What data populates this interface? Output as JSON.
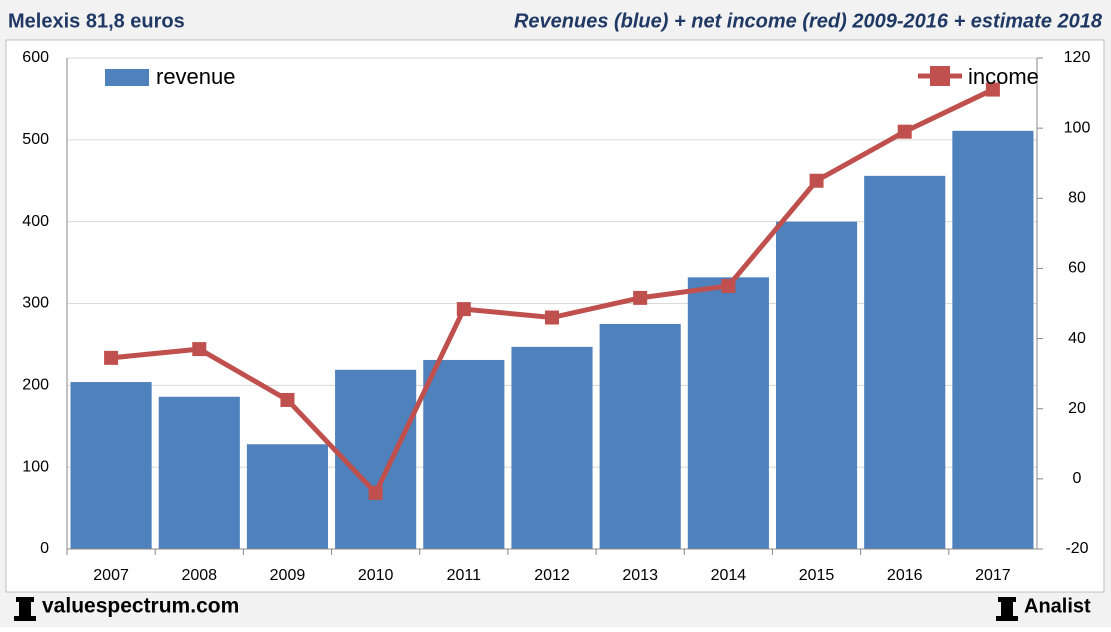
{
  "chart_data": {
    "type": "combo",
    "title": "Melexis 81,8 euros",
    "subtitle": "Revenues (blue) + net income (red) 2009-2016 + estimate 2018",
    "categories": [
      "2007",
      "2008",
      "2009",
      "2010",
      "2011",
      "2012",
      "2013",
      "2014",
      "2015",
      "2016",
      "2017"
    ],
    "series": [
      {
        "name": "revenue",
        "color": "#4f81bd",
        "kind": "bar",
        "values": [
          204,
          186,
          128,
          219,
          231,
          247,
          275,
          332,
          400,
          456,
          511
        ]
      },
      {
        "name": "income",
        "color": "#c0504d",
        "kind": "line",
        "axis": "y2",
        "values": [
          34.5,
          37,
          22.5,
          -4,
          48.4,
          46,
          51.6,
          55,
          85,
          99,
          111
        ]
      }
    ],
    "ylim": [
      0,
      600
    ],
    "yticks": [
      0,
      100,
      200,
      300,
      400,
      500,
      600
    ],
    "y2lim": [
      -20,
      120
    ],
    "y2ticks": [
      -20,
      0,
      20,
      40,
      60,
      80,
      100,
      120
    ],
    "grid": true,
    "footer_left": "valuespectrum.com",
    "footer_right": "Analist"
  }
}
